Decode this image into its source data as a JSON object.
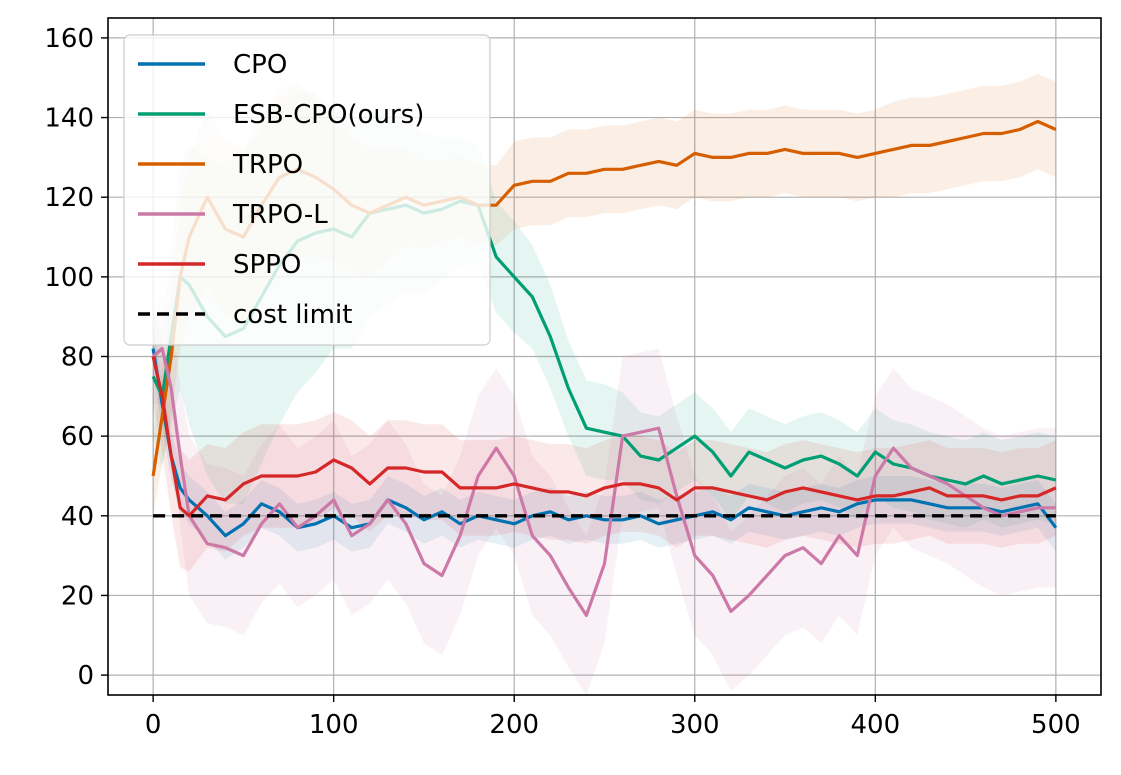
{
  "chart_data": {
    "type": "line",
    "title": "",
    "xlabel": "",
    "ylabel": "",
    "xlim": [
      -25,
      525
    ],
    "ylim": [
      -5,
      165
    ],
    "xticks": [
      0,
      100,
      200,
      300,
      400,
      500
    ],
    "yticks": [
      0,
      20,
      40,
      60,
      80,
      100,
      120,
      140,
      160
    ],
    "grid": true,
    "legend_position": "top-left",
    "series": [
      {
        "name": "CPO",
        "color": "#0072B2",
        "x": [
          0,
          5,
          10,
          15,
          20,
          30,
          40,
          50,
          60,
          70,
          80,
          90,
          100,
          110,
          120,
          130,
          140,
          150,
          160,
          170,
          180,
          190,
          200,
          210,
          220,
          230,
          240,
          250,
          260,
          270,
          280,
          290,
          300,
          310,
          320,
          330,
          340,
          350,
          360,
          370,
          380,
          390,
          400,
          410,
          420,
          430,
          440,
          450,
          460,
          470,
          480,
          490,
          500
        ],
        "values": [
          82,
          68,
          55,
          47,
          44,
          40,
          35,
          38,
          43,
          41,
          37,
          38,
          40,
          37,
          38,
          44,
          42,
          39,
          41,
          38,
          40,
          39,
          38,
          40,
          41,
          39,
          40,
          39,
          39,
          40,
          38,
          39,
          40,
          41,
          39,
          42,
          41,
          40,
          41,
          42,
          41,
          43,
          44,
          44,
          44,
          43,
          42,
          42,
          42,
          41,
          42,
          43,
          37
        ],
        "band": [
          6,
          6,
          6,
          6,
          6,
          6,
          6,
          6,
          6,
          6,
          6,
          6,
          6,
          6,
          6,
          6,
          6,
          6,
          6,
          6,
          6,
          6,
          6,
          6,
          6,
          6,
          6,
          6,
          6,
          6,
          6,
          6,
          6,
          6,
          6,
          6,
          6,
          6,
          6,
          6,
          6,
          6,
          6,
          6,
          6,
          6,
          6,
          6,
          6,
          6,
          6,
          6,
          6
        ]
      },
      {
        "name": "ESB-CPO(ours)",
        "color": "#009E73",
        "x": [
          0,
          5,
          10,
          15,
          20,
          30,
          40,
          50,
          60,
          70,
          80,
          90,
          100,
          110,
          120,
          130,
          140,
          150,
          160,
          170,
          180,
          190,
          200,
          210,
          220,
          230,
          240,
          250,
          260,
          270,
          280,
          290,
          300,
          310,
          320,
          330,
          340,
          350,
          360,
          370,
          380,
          390,
          400,
          410,
          420,
          430,
          440,
          450,
          460,
          470,
          480,
          490,
          500
        ],
        "values": [
          75,
          70,
          85,
          100,
          98,
          90,
          85,
          87,
          95,
          103,
          109,
          111,
          112,
          110,
          116,
          117,
          118,
          116,
          117,
          119,
          118,
          105,
          100,
          95,
          85,
          72,
          62,
          61,
          60,
          55,
          54,
          57,
          60,
          56,
          50,
          56,
          54,
          52,
          54,
          55,
          53,
          50,
          56,
          53,
          52,
          50,
          49,
          48,
          50,
          48,
          49,
          50,
          49
        ],
        "band": [
          15,
          18,
          22,
          28,
          35,
          40,
          42,
          44,
          42,
          40,
          38,
          35,
          30,
          28,
          26,
          24,
          22,
          20,
          18,
          16,
          15,
          14,
          14,
          13,
          13,
          12,
          12,
          12,
          11,
          11,
          11,
          11,
          11,
          11,
          11,
          11,
          11,
          11,
          11,
          11,
          11,
          11,
          11,
          11,
          11,
          11,
          11,
          11,
          11,
          11,
          11,
          11,
          11
        ]
      },
      {
        "name": "TRPO",
        "color": "#D55E00",
        "x": [
          0,
          5,
          10,
          15,
          20,
          30,
          40,
          50,
          60,
          70,
          80,
          90,
          100,
          110,
          120,
          130,
          140,
          150,
          160,
          170,
          180,
          190,
          200,
          210,
          220,
          230,
          240,
          250,
          260,
          270,
          280,
          290,
          300,
          310,
          320,
          330,
          340,
          350,
          360,
          370,
          380,
          390,
          400,
          410,
          420,
          430,
          440,
          450,
          460,
          470,
          480,
          490,
          500
        ],
        "values": [
          50,
          65,
          80,
          100,
          110,
          120,
          112,
          110,
          118,
          125,
          127,
          125,
          122,
          118,
          116,
          118,
          120,
          118,
          119,
          120,
          118,
          118,
          123,
          124,
          124,
          126,
          126,
          127,
          127,
          128,
          129,
          128,
          131,
          130,
          130,
          131,
          131,
          132,
          131,
          131,
          131,
          130,
          131,
          132,
          133,
          133,
          134,
          135,
          136,
          136,
          137,
          139,
          137
        ],
        "band": [
          10,
          12,
          15,
          18,
          20,
          22,
          22,
          22,
          22,
          22,
          22,
          20,
          18,
          17,
          16,
          14,
          12,
          11,
          10,
          10,
          10,
          10,
          11,
          11,
          11,
          11,
          11,
          11,
          11,
          11,
          11,
          11,
          11,
          11,
          11,
          11,
          11,
          11,
          11,
          11,
          11,
          11,
          11,
          12,
          12,
          12,
          12,
          12,
          12,
          12,
          12,
          12,
          12
        ]
      },
      {
        "name": "TRPO-L",
        "color": "#CC79A7",
        "x": [
          0,
          5,
          10,
          15,
          20,
          30,
          40,
          50,
          60,
          70,
          80,
          90,
          100,
          110,
          120,
          130,
          140,
          150,
          160,
          170,
          180,
          190,
          200,
          210,
          220,
          230,
          240,
          250,
          260,
          270,
          280,
          290,
          300,
          310,
          320,
          330,
          340,
          350,
          360,
          370,
          380,
          390,
          400,
          410,
          420,
          430,
          440,
          450,
          460,
          470,
          480,
          490,
          500
        ],
        "values": [
          80,
          82,
          72,
          55,
          40,
          33,
          32,
          30,
          38,
          43,
          37,
          40,
          44,
          35,
          38,
          44,
          38,
          28,
          25,
          35,
          50,
          57,
          50,
          35,
          30,
          22,
          15,
          28,
          60,
          61,
          62,
          45,
          30,
          25,
          16,
          20,
          25,
          30,
          32,
          28,
          35,
          30,
          50,
          57,
          52,
          50,
          48,
          45,
          42,
          40,
          41,
          42,
          42
        ],
        "band": [
          12,
          14,
          16,
          18,
          20,
          20,
          20,
          20,
          20,
          20,
          20,
          20,
          20,
          20,
          20,
          20,
          20,
          20,
          20,
          20,
          20,
          20,
          20,
          20,
          20,
          20,
          20,
          20,
          20,
          20,
          20,
          20,
          20,
          20,
          20,
          20,
          20,
          20,
          20,
          20,
          20,
          20,
          20,
          20,
          20,
          20,
          20,
          20,
          20,
          20,
          20,
          20,
          20
        ]
      },
      {
        "name": "SPPO",
        "color": "#D62728",
        "x": [
          0,
          5,
          10,
          15,
          20,
          30,
          40,
          50,
          60,
          70,
          80,
          90,
          100,
          110,
          120,
          130,
          140,
          150,
          160,
          170,
          180,
          190,
          200,
          210,
          220,
          230,
          240,
          250,
          260,
          270,
          280,
          290,
          300,
          310,
          320,
          330,
          340,
          350,
          360,
          370,
          380,
          390,
          400,
          410,
          420,
          430,
          440,
          450,
          460,
          470,
          480,
          490,
          500
        ],
        "values": [
          80,
          70,
          55,
          42,
          40,
          45,
          44,
          48,
          50,
          50,
          50,
          51,
          54,
          52,
          48,
          52,
          52,
          51,
          51,
          47,
          47,
          47,
          48,
          47,
          46,
          46,
          45,
          47,
          48,
          48,
          47,
          44,
          47,
          47,
          46,
          45,
          44,
          46,
          47,
          46,
          45,
          44,
          45,
          45,
          46,
          47,
          45,
          45,
          45,
          44,
          45,
          45,
          47
        ],
        "band": [
          12,
          14,
          15,
          15,
          14,
          13,
          13,
          13,
          13,
          13,
          13,
          13,
          12,
          12,
          12,
          12,
          12,
          12,
          12,
          12,
          12,
          12,
          12,
          12,
          12,
          12,
          12,
          12,
          12,
          12,
          12,
          12,
          12,
          12,
          12,
          12,
          12,
          12,
          12,
          12,
          12,
          12,
          12,
          12,
          12,
          12,
          12,
          12,
          12,
          12,
          12,
          12,
          12
        ]
      },
      {
        "name": "cost limit",
        "color": "#000000",
        "dashed": true,
        "x": [
          0,
          500
        ],
        "values": [
          40,
          40
        ]
      }
    ]
  }
}
